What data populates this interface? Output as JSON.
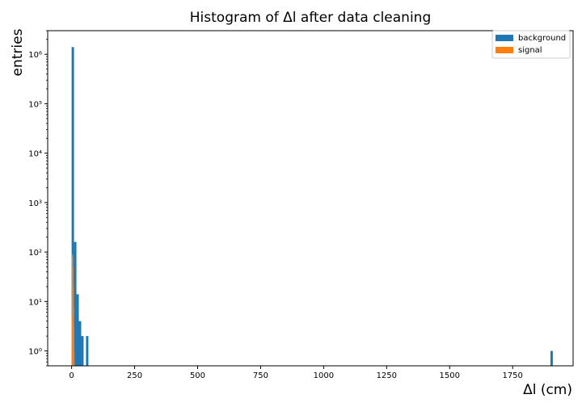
{
  "chart_data": {
    "type": "bar",
    "title": "Histogram of Δl after data cleaning",
    "xlabel": "Δl (cm)",
    "ylabel": "entries",
    "xlim": [
      -95,
      1990
    ],
    "ylim": [
      0.5,
      3000000
    ],
    "yscale": "log",
    "bin_width": 9.5,
    "grid": false,
    "legend_position": "top-right",
    "x_ticks": [
      0,
      250,
      500,
      750,
      1000,
      1250,
      1500,
      1750
    ],
    "x_tick_labels": [
      "0",
      "250",
      "500",
      "750",
      "1000",
      "1250",
      "1500",
      "1750"
    ],
    "y_ticks": [
      1,
      10,
      100,
      1000,
      10000,
      100000,
      1000000
    ],
    "y_tick_labels": [
      "10⁰",
      "10¹",
      "10²",
      "10³",
      "10⁴",
      "10⁵",
      "10⁶"
    ],
    "series": [
      {
        "name": "background",
        "color": "#1f77b4",
        "bins": [
          {
            "x": 0,
            "count": 1400000
          },
          {
            "x": 9.5,
            "count": 160
          },
          {
            "x": 19,
            "count": 14
          },
          {
            "x": 28.5,
            "count": 4
          },
          {
            "x": 38,
            "count": 2
          },
          {
            "x": 57,
            "count": 2
          },
          {
            "x": 1900,
            "count": 1
          }
        ]
      },
      {
        "name": "signal",
        "color": "#ff7f0e",
        "bins": [
          {
            "x": 0,
            "count": 5
          },
          {
            "x": 1.1,
            "count": 90
          },
          {
            "x": 2.2,
            "count": 80
          },
          {
            "x": 3.3,
            "count": 50
          },
          {
            "x": 4.4,
            "count": 20
          },
          {
            "x": 5.5,
            "count": 8
          },
          {
            "x": 6.6,
            "count": 3
          },
          {
            "x": 7.7,
            "count": 1
          }
        ],
        "bin_width": 1.1
      }
    ]
  }
}
